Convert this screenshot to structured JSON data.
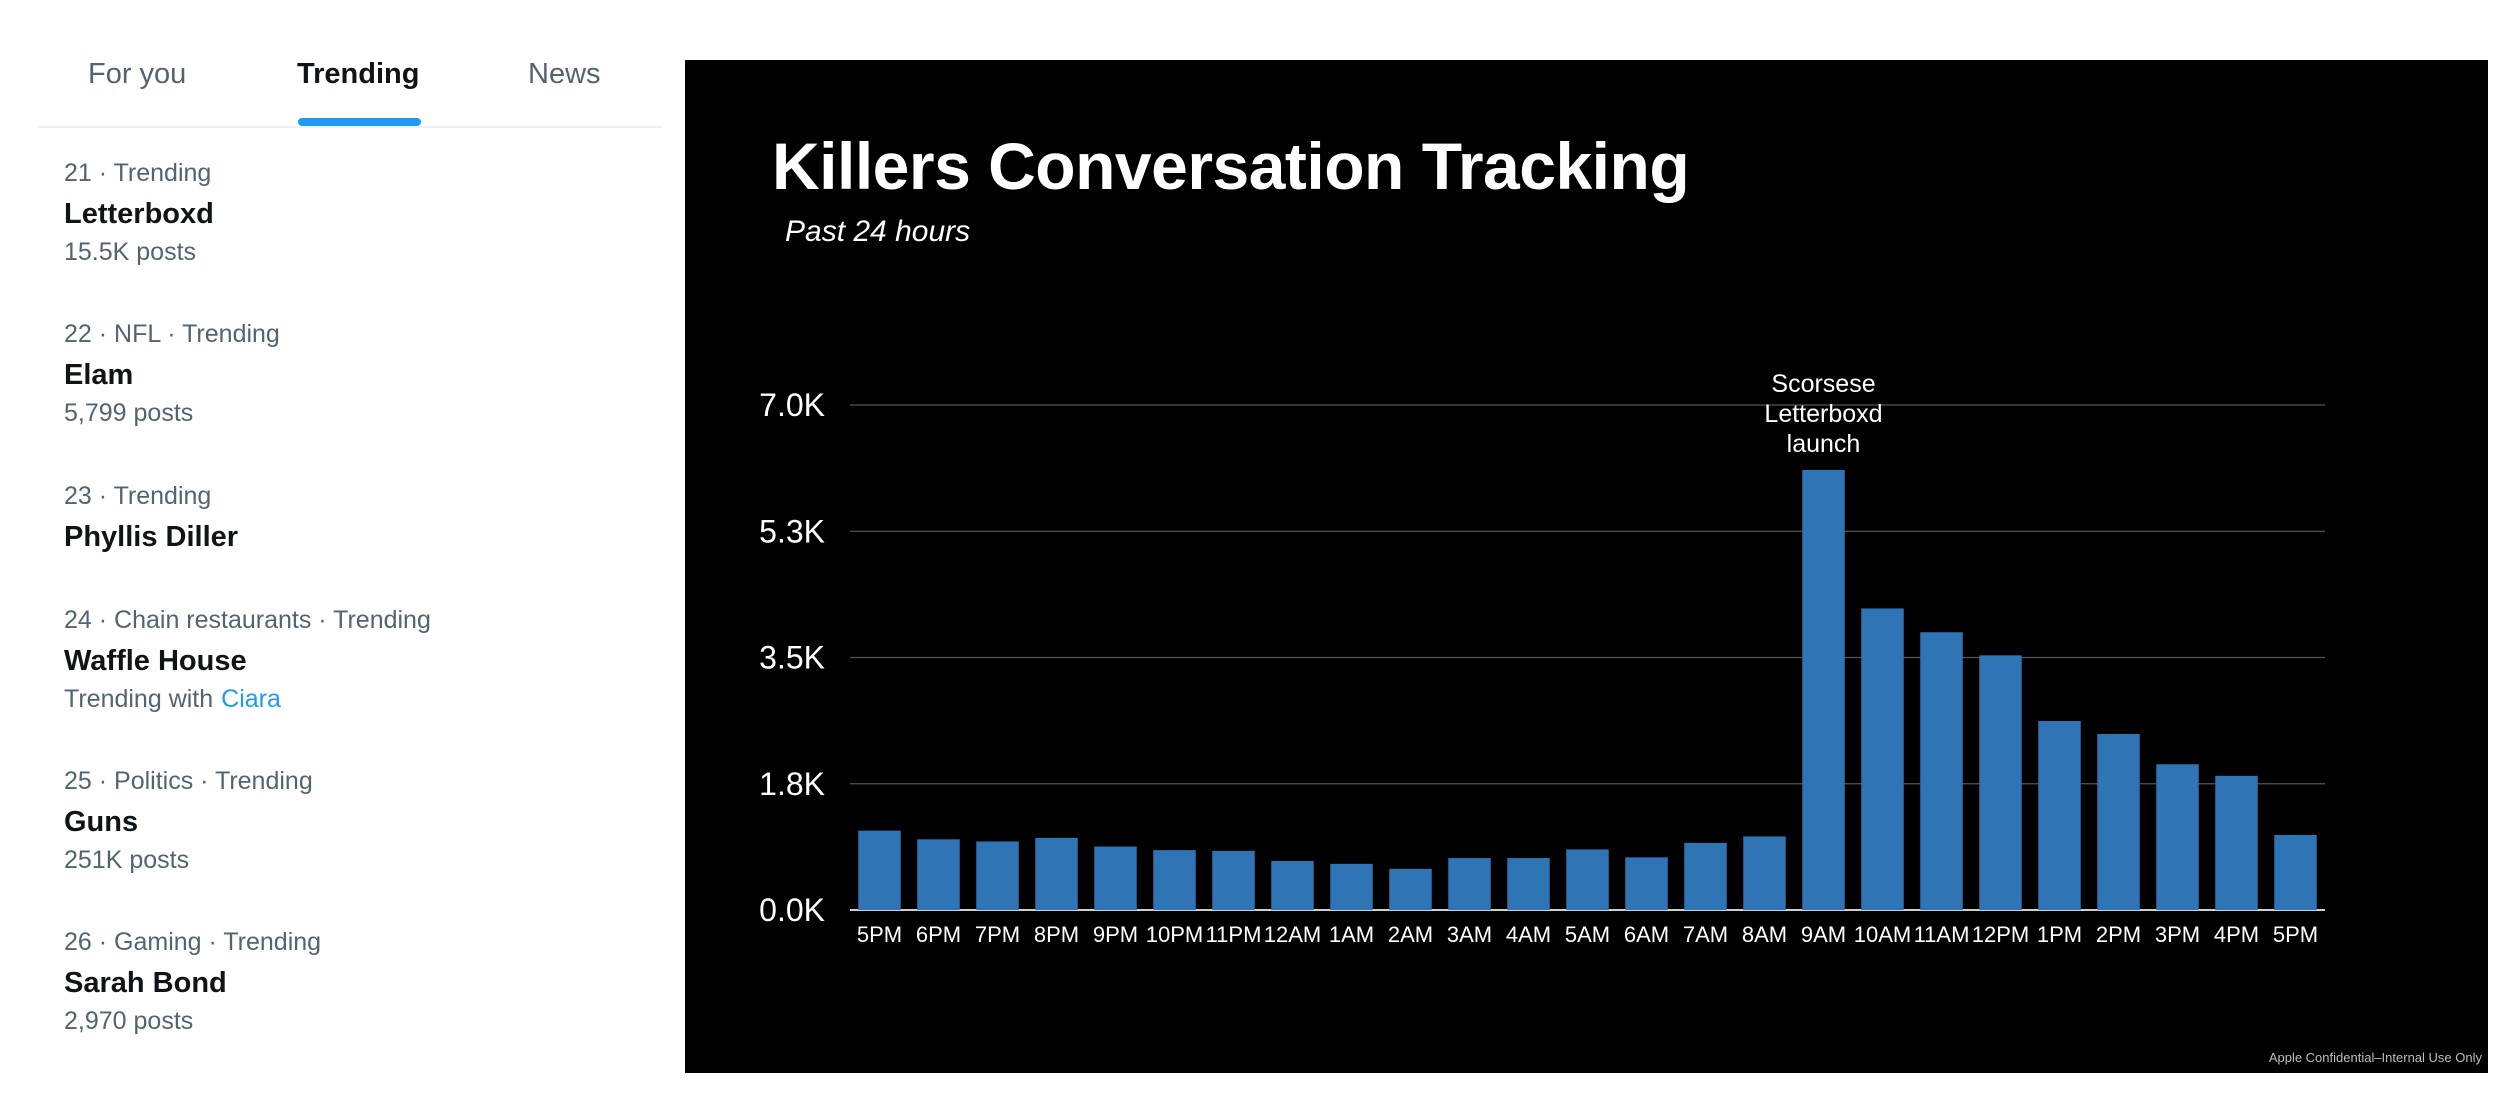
{
  "tabs": [
    {
      "label": "For you"
    },
    {
      "label": "Trending"
    },
    {
      "label": "News"
    }
  ],
  "trends": [
    {
      "meta": "21 · Trending",
      "name": "Letterboxd",
      "posts": "15.5K posts"
    },
    {
      "meta": "22 · NFL · Trending",
      "name": "Elam",
      "posts": "5,799 posts"
    },
    {
      "meta": "23 · Trending",
      "name": "Phyllis Diller",
      "posts": ""
    },
    {
      "meta": "24 · Chain restaurants · Trending",
      "name": "Waffle House",
      "with_prefix": "Trending with",
      "with_link": "Ciara"
    },
    {
      "meta": "25 · Politics · Trending",
      "name": "Guns",
      "posts": "251K posts"
    },
    {
      "meta": "26 · Gaming · Trending",
      "name": "Sarah Bond",
      "posts": "2,970 posts"
    }
  ],
  "slide": {
    "confidential": "Apple Confidential–Internal Use Only"
  },
  "colors": {
    "accent": "#1d9bf0",
    "bar": "#2f74b5",
    "slide_background": "#000000"
  },
  "chart_data": {
    "type": "bar",
    "title": "Killers Conversation Tracking",
    "subtitle": "Past 24 hours",
    "xlabel": "",
    "ylabel": "",
    "categories": [
      "5PM",
      "6PM",
      "7PM",
      "8PM",
      "9PM",
      "10PM",
      "11PM",
      "12AM",
      "1AM",
      "2AM",
      "3AM",
      "4AM",
      "5AM",
      "6AM",
      "7AM",
      "8AM",
      "9AM",
      "10AM",
      "11AM",
      "12PM",
      "1PM",
      "2PM",
      "3PM",
      "4PM",
      "5PM"
    ],
    "values": [
      1100,
      980,
      950,
      1000,
      880,
      830,
      820,
      680,
      640,
      570,
      720,
      720,
      840,
      730,
      930,
      1020,
      6100,
      4180,
      3850,
      3530,
      2620,
      2440,
      2020,
      1860,
      1040
    ],
    "ylim": [
      0,
      7000
    ],
    "yticks": [
      0,
      1750,
      3500,
      5250,
      7000
    ],
    "ytick_labels": [
      "0.0K",
      "1.8K",
      "3.5K",
      "5.3K",
      "7.0K"
    ],
    "grid": true,
    "legend": "none",
    "annotations": [
      {
        "category": "9AM",
        "lines": [
          "Scorsese",
          "Letterboxd",
          "launch"
        ]
      }
    ]
  }
}
